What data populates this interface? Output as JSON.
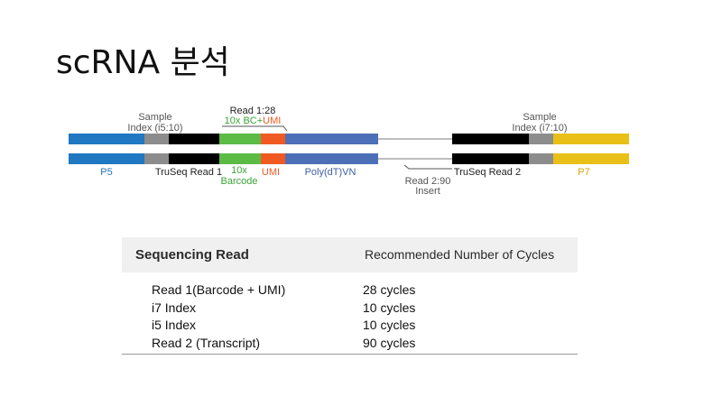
{
  "title": "scRNA 분석",
  "diagram": {
    "colors": {
      "p5": "#1f78c1",
      "sample_index": "#8c8c8c",
      "truseq": "#000000",
      "barcode": "#5bbb45",
      "umi": "#f05a22",
      "polydt": "#4d6fb8",
      "insert": "#bdbdbd",
      "p7": "#e8c018"
    },
    "labels": {
      "sample_index_left": [
        "Sample",
        "Index (i5:10)"
      ],
      "read1": "Read 1:28",
      "bc_umi_prefix": "10x BC+",
      "bc_umi_suffix": "UMI",
      "sample_index_right": [
        "Sample",
        "Index (i7:10)"
      ],
      "p5": "P5",
      "truseq_read1": "TruSeq Read 1",
      "barcode": [
        "10x",
        "Barcode"
      ],
      "umi": "UMI",
      "polydt": "Poly(dT)VN",
      "read2": [
        "Read 2:90",
        "Insert"
      ],
      "truseq_read2": "TruSeq Read 2",
      "p7": "P7"
    }
  },
  "table": {
    "headers": [
      "Sequencing Read",
      "Recommended Number of Cycles"
    ],
    "rows": [
      {
        "read": "Read 1(Barcode + UMI)",
        "cycles": "28 cycles"
      },
      {
        "read": "i7 Index",
        "cycles": "10 cycles"
      },
      {
        "read": "i5 Index",
        "cycles": "10 cycles"
      },
      {
        "read": "Read 2  (Transcript)",
        "cycles": "90 cycles"
      }
    ]
  }
}
